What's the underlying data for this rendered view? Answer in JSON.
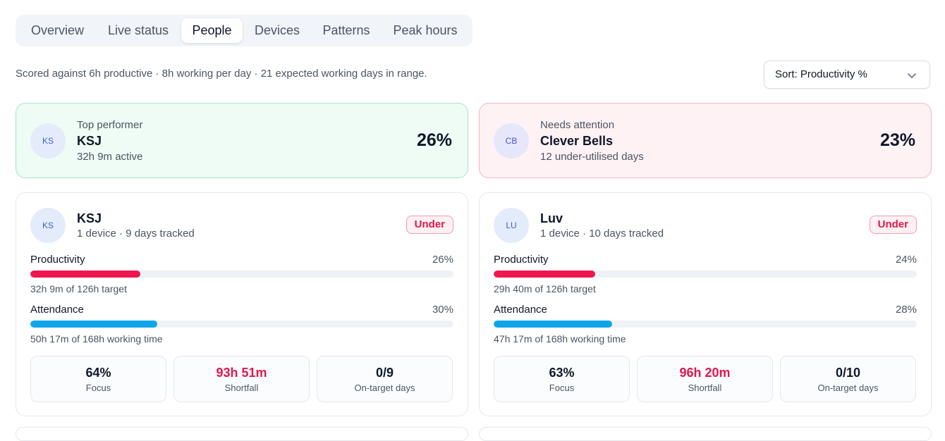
{
  "tabs": [
    {
      "label": "Overview",
      "active": false
    },
    {
      "label": "Live status",
      "active": false
    },
    {
      "label": "People",
      "active": true
    },
    {
      "label": "Devices",
      "active": false
    },
    {
      "label": "Patterns",
      "active": false
    },
    {
      "label": "Peak hours",
      "active": false
    }
  ],
  "scoring_note": "Scored against 6h productive · 8h working per day · 21 expected working days in range.",
  "sort": {
    "label": "Sort: Productivity %"
  },
  "highlights": {
    "top": {
      "kicker": "Top performer",
      "initials": "KS",
      "name": "KSJ",
      "sub": "32h 9m active",
      "pct": "26%"
    },
    "attention": {
      "kicker": "Needs attention",
      "initials": "CB",
      "name": "Clever Bells",
      "sub": "12 under-utilised days",
      "pct": "23%"
    }
  },
  "people": [
    {
      "initials": "KS",
      "name": "KSJ",
      "sub": "1 device · 9 days tracked",
      "badge": "Under",
      "productivity": {
        "label": "Productivity",
        "pct": "26%",
        "value": 26,
        "note": "32h 9m of 126h target"
      },
      "attendance": {
        "label": "Attendance",
        "pct": "30%",
        "value": 30,
        "note": "50h 17m of 168h working time"
      },
      "stats": [
        {
          "value": "64%",
          "label": "Focus",
          "alert": false
        },
        {
          "value": "93h 51m",
          "label": "Shortfall",
          "alert": true
        },
        {
          "value": "0/9",
          "label": "On-target days",
          "alert": false
        }
      ]
    },
    {
      "initials": "LU",
      "name": "Luv",
      "sub": "1 device · 10 days tracked",
      "badge": "Under",
      "productivity": {
        "label": "Productivity",
        "pct": "24%",
        "value": 24,
        "note": "29h 40m of 126h target"
      },
      "attendance": {
        "label": "Attendance",
        "pct": "28%",
        "value": 28,
        "note": "47h 17m of 168h working time"
      },
      "stats": [
        {
          "value": "63%",
          "label": "Focus",
          "alert": false
        },
        {
          "value": "96h 20m",
          "label": "Shortfall",
          "alert": true
        },
        {
          "value": "0/10",
          "label": "On-target days",
          "alert": false
        }
      ]
    }
  ],
  "colors": {
    "accent_red": "#f0174f",
    "accent_blue": "#0ea5e9",
    "success_bg": "#effbf5",
    "danger_bg": "#fff2f4"
  },
  "icons": {
    "sort_toggle": "chevron-down-icon"
  }
}
